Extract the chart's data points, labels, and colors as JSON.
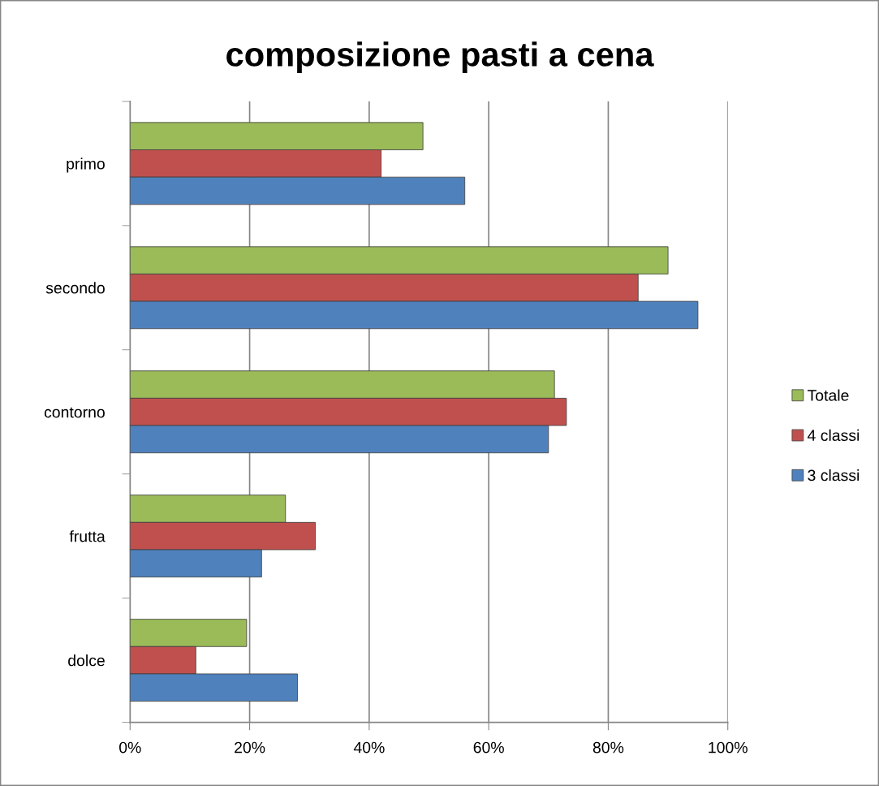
{
  "chart_data": {
    "type": "bar",
    "orientation": "horizontal",
    "title": "composizione pasti a cena",
    "categories": [
      "primo",
      "secondo",
      "contorno",
      "frutta",
      "dolce"
    ],
    "series": [
      {
        "name": "Totale",
        "color": "#9bbb59",
        "values": [
          49,
          90,
          71,
          26,
          19.5
        ]
      },
      {
        "name": "4 classi",
        "color": "#c0504d",
        "values": [
          42,
          85,
          73,
          31,
          11
        ]
      },
      {
        "name": "3 classi",
        "color": "#4f81bd",
        "values": [
          56,
          95,
          70,
          22,
          28
        ]
      }
    ],
    "xlim": [
      0,
      100
    ],
    "xticks": [
      {
        "value": 0,
        "label": "0%"
      },
      {
        "value": 20,
        "label": "20%"
      },
      {
        "value": 40,
        "label": "40%"
      },
      {
        "value": 60,
        "label": "60%"
      },
      {
        "value": 80,
        "label": "80%"
      },
      {
        "value": 100,
        "label": "100%"
      }
    ],
    "grid": "x",
    "legend": "right",
    "marker": "square"
  }
}
